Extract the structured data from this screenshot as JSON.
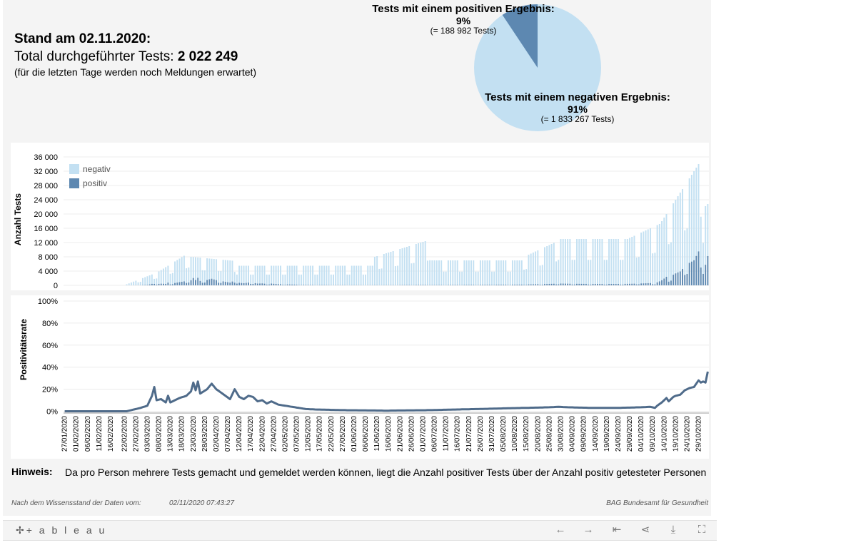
{
  "header": {
    "stand": "Stand am 02.11.2020:",
    "total_prefix": "Total durchgeführter Tests: ",
    "total_value": "2 022 249",
    "note": "(für die letzten Tage werden noch Meldungen erwartet)"
  },
  "pie": {
    "positive": {
      "title": "Tests mit einem positiven Ergebnis:",
      "pct": "9%",
      "count": "(= 188 982 Tests)",
      "value": 188982
    },
    "negative": {
      "title": "Tests mit einem negativen Ergebnis:",
      "pct": "91%",
      "count": "(= 1 833 267 Tests)",
      "value": 1833267
    }
  },
  "colors": {
    "negativ": "#c3e0f2",
    "positiv": "#5d88b1",
    "line": "#4f6b8a"
  },
  "hint": {
    "label": "Hinweis:",
    "text": "Da pro Person mehrere Tests gemacht und gemeldet werden können, liegt die Anzahl positiver Tests über der Anzahl positiv getesteter Personen"
  },
  "footer": {
    "left": "Nach dem Wissensstand der Daten vom:",
    "date": "02/11/2020 07:43:27",
    "right": "BAG Bundesamt für Gesundheit"
  },
  "toolbar": {
    "logo": "✢+ a b l e a u",
    "undo_icon": "←",
    "redo_icon": "→",
    "revert_icon": "⇤",
    "share_icon": "⋖",
    "download_icon": "⤓",
    "fullscreen_icon": "⛶"
  },
  "chart_data": [
    {
      "type": "bar",
      "stacked": true,
      "ylabel": "Anzahl Tests",
      "yticks": [
        0,
        4000,
        8000,
        12000,
        16000,
        20000,
        24000,
        28000,
        32000,
        36000
      ],
      "ytick_labels": [
        "0",
        "4 000",
        "8 000",
        "12 000",
        "16 000",
        "20 000",
        "24 000",
        "28 000",
        "32 000",
        "36 000"
      ],
      "ylim": [
        -1000,
        38000
      ],
      "start_date": "2020-01-27",
      "legend": [
        {
          "name": "negativ"
        },
        {
          "name": "positiv"
        }
      ],
      "legend_position": "top-left",
      "series": [
        {
          "name": "negativ",
          "values": [
            0,
            0,
            0,
            0,
            0,
            0,
            0,
            0,
            0,
            0,
            0,
            0,
            0,
            0,
            0,
            0,
            0,
            0,
            0,
            0,
            0,
            0,
            0,
            0,
            0,
            0,
            0,
            0,
            0,
            0,
            0,
            0,
            0,
            0,
            0,
            0,
            0,
            0,
            0,
            0,
            0,
            0,
            0,
            0,
            0,
            0,
            0,
            0,
            0,
            0,
            0,
            0,
            0,
            0,
            0,
            0,
            0,
            0,
            0,
            0,
            0,
            0,
            0,
            0,
            0,
            0,
            0,
            0,
            0,
            0,
            0,
            0,
            0,
            0,
            0,
            0,
            0,
            0,
            0,
            0,
            0,
            0,
            0,
            0,
            0,
            0,
            0,
            0,
            0,
            0,
            0,
            0,
            0,
            0,
            0,
            0,
            0,
            0,
            0,
            0,
            0,
            0,
            0,
            0,
            0,
            0,
            0,
            0,
            0,
            0,
            0,
            0,
            0,
            0,
            0,
            0,
            0,
            0,
            0,
            0,
            0,
            0,
            0,
            0,
            0,
            0,
            0,
            0,
            0,
            0,
            0,
            0,
            0,
            0,
            0,
            0,
            0,
            0,
            0,
            0,
            0,
            0,
            0,
            0,
            0,
            0,
            0,
            0,
            0,
            0,
            0,
            0,
            0,
            0,
            0,
            0,
            0,
            0,
            0,
            0,
            0,
            0,
            0,
            0,
            0,
            0,
            0,
            0,
            0,
            0,
            0,
            0,
            0,
            0,
            0,
            0,
            0,
            0,
            0,
            0,
            0,
            0,
            0,
            0,
            0,
            0,
            0,
            0,
            0,
            0,
            0,
            0,
            0,
            0,
            0,
            0,
            0,
            0,
            0,
            0,
            0,
            0,
            0,
            0,
            0,
            0,
            0,
            0,
            0,
            0,
            0,
            0,
            0,
            0,
            0,
            0,
            0,
            0,
            0,
            0,
            0,
            0,
            0,
            0,
            0,
            0,
            0,
            0,
            0,
            0,
            0,
            0,
            0,
            0,
            0,
            0,
            0,
            0,
            0,
            0,
            0,
            0,
            0,
            0,
            0,
            0,
            0,
            0,
            0,
            0,
            0,
            0,
            0,
            0,
            0,
            0,
            0,
            0,
            0,
            0,
            0,
            0,
            0,
            0,
            0,
            0,
            0,
            0,
            0,
            0,
            0,
            0,
            0,
            0,
            0,
            0,
            0,
            0,
            0,
            0,
            0,
            0,
            0,
            0,
            0,
            0,
            0,
            0,
            0,
            0,
            0,
            0,
            0,
            0,
            0,
            0,
            0,
            0,
            0,
            0,
            0,
            0,
            0,
            0,
            0,
            0,
            0,
            0,
            0,
            0,
            0,
            0,
            0
          ]
        },
        {
          "name": "positiv",
          "values": [
            0,
            0,
            0,
            0,
            0,
            0,
            0,
            0,
            0,
            0,
            0,
            0,
            0,
            0,
            0,
            0,
            0,
            0,
            0,
            0,
            0,
            0,
            0,
            0,
            0,
            0,
            0,
            0,
            0,
            0,
            0,
            0,
            0,
            0,
            0,
            0,
            0,
            0,
            0,
            0,
            0,
            0,
            0,
            0,
            0,
            0,
            0,
            0,
            0,
            0,
            0,
            0,
            0,
            0,
            0,
            0,
            0,
            0,
            0,
            0,
            0,
            0,
            0,
            0,
            0,
            0,
            0,
            0,
            0,
            0,
            0,
            0,
            0,
            0,
            0,
            0,
            0,
            0,
            0,
            0,
            0,
            0,
            0,
            0,
            0,
            0,
            0,
            0,
            0,
            0,
            0,
            0,
            0,
            0,
            0,
            0,
            0,
            0,
            0,
            0,
            0,
            0,
            0,
            0,
            0,
            0,
            0,
            0,
            0,
            0,
            0,
            0,
            0,
            0,
            0,
            0,
            0,
            0,
            0,
            0,
            0,
            0,
            0,
            0,
            0,
            0,
            0,
            0,
            0,
            0,
            0,
            0,
            0,
            0,
            0,
            0,
            0,
            0,
            0,
            0,
            0,
            0,
            0,
            0,
            0,
            0,
            0,
            0,
            0,
            0,
            0,
            0,
            0,
            0,
            0,
            0,
            0,
            0,
            0,
            0,
            0,
            0,
            0,
            0,
            0,
            0,
            0,
            0,
            0,
            0,
            0,
            0,
            0,
            0,
            0,
            0,
            0,
            0,
            0,
            0,
            0,
            0,
            0,
            0,
            0,
            0,
            0,
            0,
            0,
            0,
            0,
            0,
            0,
            0,
            0,
            0,
            0,
            0,
            0,
            0,
            0,
            0,
            0,
            0,
            0,
            0,
            0,
            0,
            0,
            0,
            0,
            0,
            0,
            0,
            0,
            0,
            0,
            0,
            0,
            0,
            0,
            0,
            0,
            0,
            0,
            0,
            0,
            0,
            0,
            0,
            0,
            0,
            0,
            0,
            0,
            0,
            0,
            0,
            0,
            0,
            0,
            0,
            0,
            0,
            0,
            0,
            0,
            0,
            0,
            0,
            0,
            0,
            0,
            0,
            0,
            0,
            0,
            0,
            0,
            0,
            0,
            0,
            0,
            0,
            0,
            0,
            0,
            0,
            0,
            0,
            0,
            0,
            0,
            0,
            0,
            0,
            0,
            0,
            0,
            0,
            0,
            0,
            0,
            0,
            0,
            0,
            0,
            0,
            0,
            0,
            0,
            0,
            0,
            0,
            0,
            0,
            0,
            0,
            0,
            0,
            0,
            0,
            0,
            0,
            0,
            0,
            0,
            0,
            0,
            0,
            0,
            0,
            0,
            0,
            0,
            0,
            0,
            0,
            0,
            0,
            0,
            0,
            0,
            0,
            0
          ]
        }
      ]
    },
    {
      "type": "line",
      "ylabel": "Positivitätsrate",
      "yticks": [
        0,
        20,
        40,
        60,
        80,
        100
      ],
      "ytick_labels": [
        "0%",
        "20%",
        "40%",
        "60%",
        "80%",
        "100%"
      ],
      "ylim": [
        -1,
        100
      ],
      "x_tick_labels": [
        "27/01/2020",
        "01/02/2020",
        "06/02/2020",
        "11/02/2020",
        "16/02/2020",
        "22/02/2020",
        "27/02/2020",
        "03/03/2020",
        "08/03/2020",
        "13/03/2020",
        "18/03/2020",
        "23/03/2020",
        "28/03/2020",
        "02/04/2020",
        "07/04/2020",
        "12/04/2020",
        "17/04/2020",
        "22/04/2020",
        "27/04/2020",
        "02/05/2020",
        "07/05/2020",
        "12/05/2020",
        "17/05/2020",
        "22/05/2020",
        "27/05/2020",
        "01/06/2020",
        "06/06/2020",
        "11/06/2020",
        "16/06/2020",
        "21/06/2020",
        "26/06/2020",
        "01/07/2020",
        "06/07/2020",
        "11/07/2020",
        "16/07/2020",
        "21/07/2020",
        "26/07/2020",
        "31/07/2020",
        "05/08/2020",
        "10/08/2020",
        "15/08/2020",
        "20/08/2020",
        "25/08/2020",
        "30/08/2020",
        "04/09/2020",
        "09/09/2020",
        "14/09/2020",
        "19/09/2020",
        "24/09/2020",
        "29/09/2020",
        "04/10/2020",
        "09/10/2020",
        "14/10/2020",
        "19/10/2020",
        "24/10/2020",
        "29/10/2020"
      ],
      "series": [
        {
          "name": "Positivitätsrate",
          "values": []
        }
      ]
    }
  ]
}
